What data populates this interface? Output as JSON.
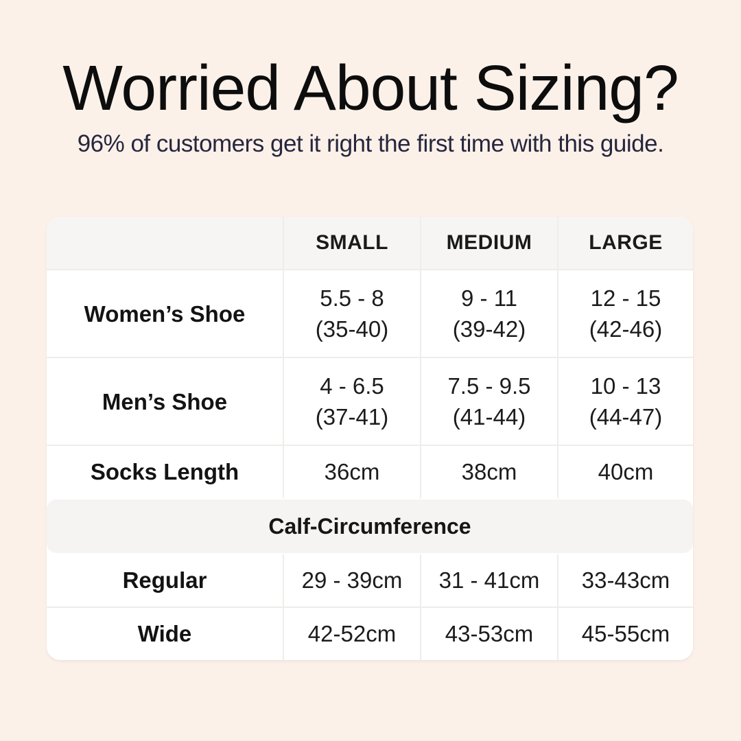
{
  "colors": {
    "background": "#fcf1e9",
    "card": "#ffffff",
    "header_band": "#f6f5f3",
    "section_band": "#f5f4f2",
    "separator": "#efedeb",
    "title_text": "#0d0d0d",
    "subtitle_text": "#26263e",
    "table_text": "#1c1c1c"
  },
  "chart_data": {
    "type": "table",
    "title": "Worried About Sizing?",
    "subtitle": "96% of customers get it right the first time with this guide.",
    "columns": [
      "",
      "SMALL",
      "MEDIUM",
      "LARGE"
    ],
    "shoe_rows": [
      {
        "label": "Women’s Shoe",
        "small": [
          "5.5 - 8",
          "(35-40)"
        ],
        "medium": [
          "9 - 11",
          "(39-42)"
        ],
        "large": [
          "12 - 15",
          "(42-46)"
        ]
      },
      {
        "label": "Men’s Shoe",
        "small": [
          "4 - 6.5",
          "(37-41)"
        ],
        "medium": [
          "7.5 - 9.5",
          "(41-44)"
        ],
        "large": [
          "10 - 13",
          "(44-47)"
        ]
      }
    ],
    "socks_row": {
      "label": "Socks Length",
      "small": "36cm",
      "medium": "38cm",
      "large": "40cm"
    },
    "section_header": "Calf-Circumference",
    "calf_rows": [
      {
        "label": "Regular",
        "small": "29 - 39cm",
        "medium": "31 - 41cm",
        "large": "33-43cm"
      },
      {
        "label": "Wide",
        "small": "42-52cm",
        "medium": "43-53cm",
        "large": "45-55cm"
      }
    ]
  }
}
